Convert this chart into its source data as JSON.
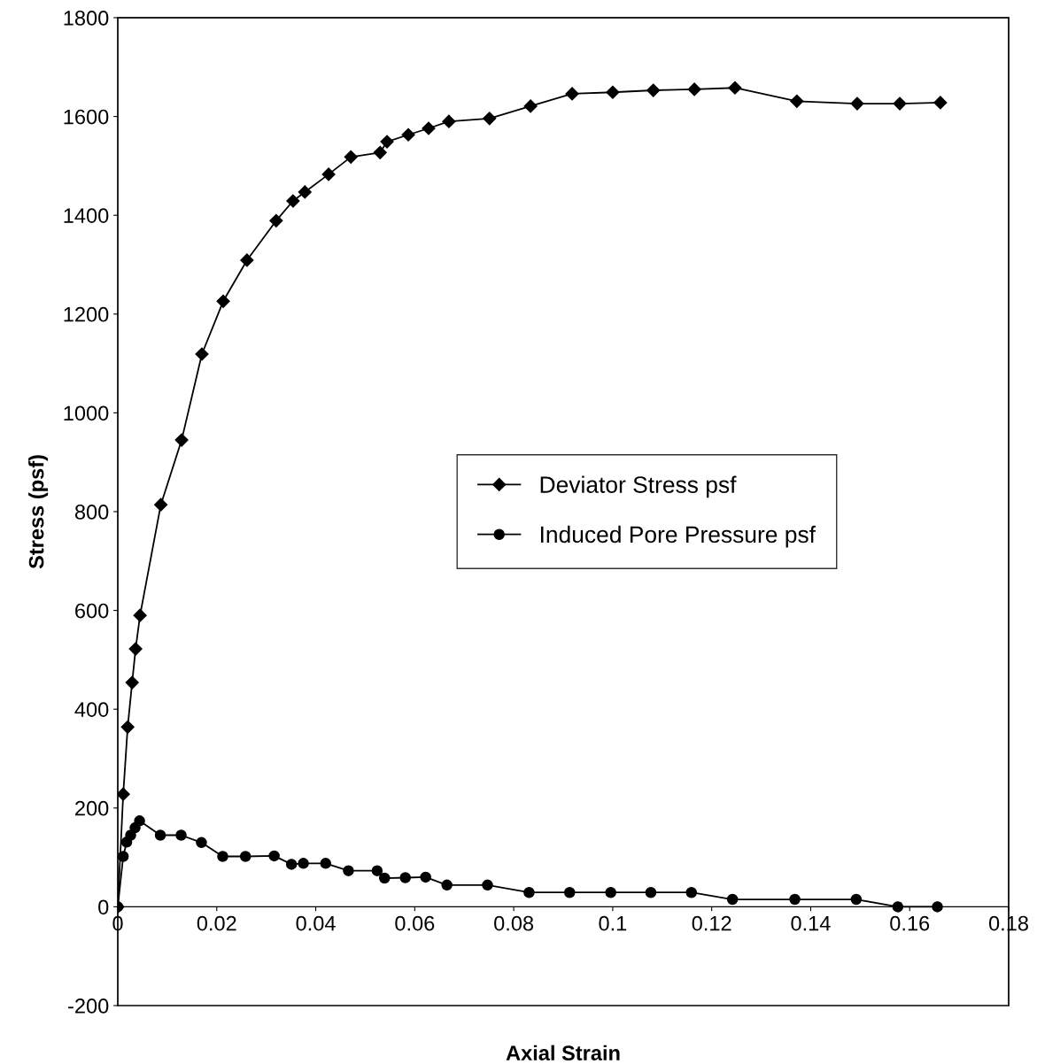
{
  "chart_data": {
    "type": "line",
    "xlabel": "Axial Strain",
    "ylabel": "Stress (psf)",
    "xlim": [
      0,
      0.18
    ],
    "xticks": [
      0,
      0.02,
      0.04,
      0.06,
      0.08,
      0.1,
      0.12,
      0.14,
      0.16,
      0.18
    ],
    "ylim": [
      -200,
      1800
    ],
    "yticks": [
      -200,
      0,
      200,
      400,
      600,
      800,
      1000,
      1200,
      1400,
      1600,
      1800
    ],
    "grid": false,
    "legend": "right",
    "line_style": "solid",
    "series": [
      {
        "name": "Deviator Stress psf",
        "color": "#000000",
        "marker": "diamond",
        "x": [
          0,
          0.0011,
          0.002,
          0.0029,
          0.0036,
          0.0045,
          0.0087,
          0.0129,
          0.017,
          0.0213,
          0.0261,
          0.032,
          0.0354,
          0.0378,
          0.0426,
          0.0471,
          0.053,
          0.0544,
          0.0587,
          0.0628,
          0.0669,
          0.0751,
          0.0834,
          0.0918,
          0.1,
          0.1082,
          0.1165,
          0.1247,
          0.1372,
          0.1494,
          0.158,
          0.1662
        ],
        "values": [
          0,
          228,
          364,
          454,
          522,
          590,
          814,
          945,
          1119,
          1226,
          1309,
          1389,
          1429,
          1447,
          1483,
          1518,
          1527,
          1549,
          1563,
          1576,
          1590,
          1596,
          1621,
          1646,
          1649,
          1653,
          1655,
          1658,
          1631,
          1626,
          1626,
          1628
        ]
      },
      {
        "name": "Induced Pore Pressure psf",
        "color": "#000000",
        "marker": "circle",
        "x": [
          0,
          0.0011,
          0.0018,
          0.0026,
          0.0035,
          0.0044,
          0.0086,
          0.0128,
          0.0169,
          0.0212,
          0.0258,
          0.0316,
          0.0351,
          0.0375,
          0.042,
          0.0466,
          0.0524,
          0.0539,
          0.0581,
          0.0622,
          0.0665,
          0.0747,
          0.0831,
          0.0913,
          0.0996,
          0.1077,
          0.1159,
          0.1242,
          0.1368,
          0.1492,
          0.1576,
          0.1656
        ],
        "values": [
          0,
          102,
          131,
          145,
          160,
          174,
          145,
          145,
          130,
          102,
          102,
          103,
          86,
          88,
          88,
          73,
          73,
          58,
          59,
          60,
          44,
          44,
          29,
          29,
          29,
          29,
          29,
          15,
          15,
          15,
          0,
          0
        ]
      }
    ]
  }
}
